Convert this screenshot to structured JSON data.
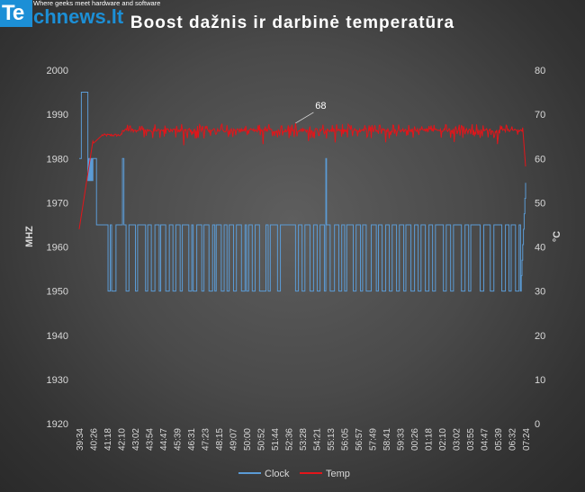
{
  "logo": {
    "prefix": "Te",
    "rest": "chnews.lt",
    "tagline": "Where geeks meet hardware and software"
  },
  "colors": {
    "clock": "#5b9bd5",
    "temp": "#e3151a",
    "logo_blue": "#1c8fd6"
  },
  "chart_data": {
    "type": "line",
    "title": "Boost dažnis ir darbinė temperatūra",
    "ylabel": "MHZ",
    "y2label": "°C",
    "ylim": [
      1920,
      2000
    ],
    "y2lim": [
      0,
      80
    ],
    "yticks": [
      1920,
      1930,
      1940,
      1950,
      1960,
      1970,
      1980,
      1990,
      2000
    ],
    "y2ticks": [
      0,
      10,
      20,
      30,
      40,
      50,
      60,
      70,
      80
    ],
    "categories": [
      "39:34",
      "40:26",
      "41:18",
      "42:10",
      "43:02",
      "43:54",
      "44:47",
      "45:39",
      "46:31",
      "47:23",
      "48:15",
      "49:07",
      "50:00",
      "50:52",
      "51:44",
      "52:36",
      "53:28",
      "54:21",
      "55:13",
      "56:05",
      "56:57",
      "57:49",
      "58:41",
      "59:33",
      "00:26",
      "01:18",
      "02:10",
      "03:02",
      "03:55",
      "04:47",
      "05:39",
      "06:32",
      "07:24"
    ],
    "annotation": {
      "label": "68",
      "value": 68
    },
    "legend_position": "bottom",
    "series": [
      {
        "name": "Clock",
        "axis": "left"
      },
      {
        "name": "Temp",
        "axis": "right"
      }
    ]
  }
}
